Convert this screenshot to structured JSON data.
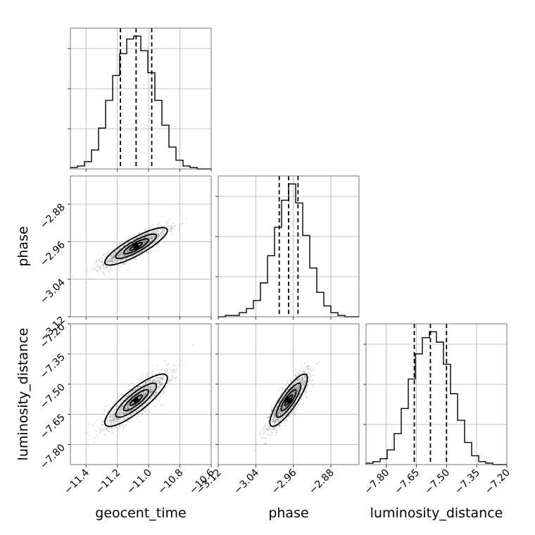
{
  "chart_data": {
    "type": "corner",
    "parameters": [
      {
        "key": "geocent_time",
        "label": "geocent_time",
        "range": [
          -11.5,
          -10.6
        ],
        "ticks": [
          "−11.4",
          "−11.2",
          "−11.0",
          "−10.8",
          "−10.6"
        ],
        "tick_values": [
          -11.4,
          -11.2,
          -11.0,
          -10.8,
          -10.6
        ],
        "quantiles": [
          -11.18,
          -11.08,
          -10.98
        ],
        "mean": -11.08,
        "sd": 0.1
      },
      {
        "key": "phase",
        "label": "phase",
        "range": [
          -3.12,
          -2.82
        ],
        "ticks": [
          "−3.12",
          "−3.04",
          "−2.96",
          "−2.88"
        ],
        "tick_values": [
          -3.12,
          -3.04,
          -2.96,
          -2.88
        ],
        "quantiles": [
          -2.99,
          -2.97,
          -2.95
        ],
        "mean": -2.97,
        "sd": 0.02
      },
      {
        "key": "luminosity_distance",
        "label": "luminosity_distance",
        "range": [
          -7.9,
          -7.2
        ],
        "ticks": [
          "−7.80",
          "−7.65",
          "−7.50",
          "−7.35",
          "−7.20"
        ],
        "tick_values": [
          -7.8,
          -7.65,
          -7.5,
          -7.35,
          -7.2
        ],
        "quantiles": [
          -7.66,
          -7.58,
          -7.5
        ],
        "mean": -7.58,
        "sd": 0.065
      }
    ],
    "histograms": {
      "geocent_time": [
        1,
        2,
        5,
        13,
        28,
        47,
        64,
        79,
        89,
        91,
        81,
        66,
        47,
        30,
        15,
        6,
        2,
        1,
        0,
        0
      ],
      "phase": [
        0,
        1,
        1,
        3,
        6,
        12,
        25,
        45,
        66,
        86,
        98,
        84,
        60,
        36,
        18,
        8,
        3,
        1,
        0,
        0
      ],
      "luminosity_distance": [
        1,
        2,
        4,
        10,
        21,
        38,
        58,
        75,
        86,
        90,
        83,
        68,
        48,
        30,
        15,
        6,
        2,
        1,
        0,
        0
      ]
    },
    "correlations": {
      "geocent_time|phase": 0.85,
      "geocent_time|luminosity_distance": 0.85,
      "phase|luminosity_distance": 0.85
    },
    "grid": true
  }
}
